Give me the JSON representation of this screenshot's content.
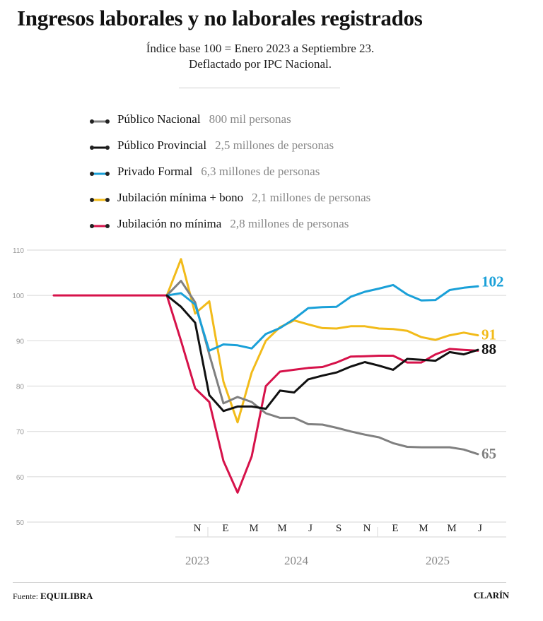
{
  "header": {
    "title": "Ingresos laborales y no laborales registrados",
    "subtitle_line1": "Índice base 100 = Enero 2023 a Septiembre 23.",
    "subtitle_line2": "Deflactado por IPC Nacional."
  },
  "legend": [
    {
      "name": "Público Nacional",
      "count": "800 mil personas",
      "color": "#808080"
    },
    {
      "name": "Público Provincial",
      "count": "2,5 millones de personas",
      "color": "#111111"
    },
    {
      "name": "Privado Formal",
      "count": "6,3 millones de personas",
      "color": "#1aa0d8"
    },
    {
      "name": "Jubilación mínima + bono",
      "count": "2,1 millones de personas",
      "color": "#f2bb1a"
    },
    {
      "name": "Jubilación no mínima",
      "count": "2,8 millones de personas",
      "color": "#d6124a"
    }
  ],
  "footer": {
    "source_label": "Fuente:",
    "source_name": "EQUILIBRA",
    "brand": "CLARÍN"
  },
  "chart_data": {
    "type": "line",
    "title": "Ingresos laborales y no laborales registrados",
    "xlabel": "",
    "ylabel": "",
    "ylim": [
      50,
      110
    ],
    "yticks": [
      50,
      60,
      70,
      80,
      90,
      100,
      110
    ],
    "grid": true,
    "legend_position": "top",
    "x": [
      "2023-01",
      "2023-02",
      "2023-03",
      "2023-04",
      "2023-05",
      "2023-06",
      "2023-07",
      "2023-08",
      "2023-09",
      "2023-10",
      "2023-11",
      "2023-12",
      "2024-01",
      "2024-02",
      "2024-03",
      "2024-04",
      "2024-05",
      "2024-06",
      "2024-07",
      "2024-08",
      "2024-09",
      "2024-10",
      "2024-11",
      "2024-12",
      "2025-01",
      "2025-02",
      "2025-03",
      "2025-04",
      "2025-05",
      "2025-06",
      "2025-07"
    ],
    "month_ticks": [
      {
        "label": "N",
        "x": "2023-11"
      },
      {
        "label": "E",
        "x": "2024-01"
      },
      {
        "label": "M",
        "x": "2024-03"
      },
      {
        "label": "M",
        "x": "2024-05"
      },
      {
        "label": "J",
        "x": "2024-07"
      },
      {
        "label": "S",
        "x": "2024-09"
      },
      {
        "label": "N",
        "x": "2024-11"
      },
      {
        "label": "E",
        "x": "2025-01"
      },
      {
        "label": "M",
        "x": "2025-03"
      },
      {
        "label": "M",
        "x": "2025-05"
      },
      {
        "label": "J",
        "x": "2025-07"
      }
    ],
    "year_labels": [
      {
        "label": "2023",
        "x": "2023-11"
      },
      {
        "label": "2024",
        "x": "2024-06"
      },
      {
        "label": "2025",
        "x": "2025-04"
      }
    ],
    "year_dividers": [
      "2023-12",
      "2024-12"
    ],
    "base": {
      "name": "Base",
      "start": "2023-01",
      "end": "2023-09",
      "value": 100,
      "color": "#d6124a"
    },
    "series_start": "2023-09",
    "series": [
      {
        "name": "Público Nacional",
        "color": "#808080",
        "end_label": "65",
        "values": [
          100,
          103.2,
          98.5,
          87,
          76.2,
          77.6,
          76.5,
          74,
          73,
          73,
          71.6,
          71.5,
          70.8,
          70,
          69.3,
          68.7,
          67.4,
          66.6,
          66.5,
          66.5,
          66.5,
          66,
          65
        ]
      },
      {
        "name": "Público Provincial",
        "color": "#111111",
        "end_label": "88",
        "values": [
          100,
          97.5,
          94,
          78,
          74.5,
          75.5,
          75.5,
          75,
          79,
          78.6,
          81.5,
          82.3,
          83,
          84.3,
          85.3,
          84.5,
          83.6,
          86,
          85.8,
          85.6,
          87.5,
          87,
          88
        ]
      },
      {
        "name": "Privado Formal",
        "color": "#1aa0d8",
        "end_label": "102",
        "values": [
          100,
          100.5,
          98,
          87.8,
          89.2,
          89,
          88.3,
          91.5,
          92.8,
          94.8,
          97.2,
          97.4,
          97.5,
          99.7,
          100.8,
          101.5,
          102.3,
          100.2,
          98.9,
          99,
          101.2,
          101.7,
          102
        ]
      },
      {
        "name": "Jubilación mínima + bono",
        "color": "#f2bb1a",
        "end_label": "91",
        "values": [
          100,
          108,
          96,
          98.7,
          81,
          72,
          83,
          90,
          93,
          94.5,
          93.6,
          92.8,
          92.7,
          93.2,
          93.2,
          92.7,
          92.6,
          92.2,
          90.8,
          90.2,
          91.2,
          91.8,
          91.2
        ]
      },
      {
        "name": "Jubilación no mínima",
        "color": "#d6124a",
        "end_label": "",
        "values": [
          100,
          90,
          79.5,
          76.5,
          63.5,
          56.5,
          64.5,
          80,
          83.2,
          83.6,
          84,
          84.2,
          85.2,
          86.5,
          86.6,
          86.7,
          86.7,
          85.2,
          85.2,
          87,
          88.2,
          88,
          87.8
        ]
      }
    ]
  }
}
